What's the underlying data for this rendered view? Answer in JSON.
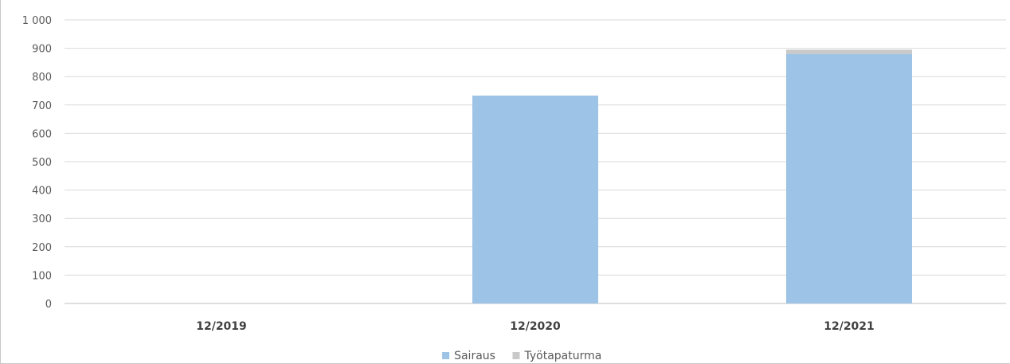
{
  "chart_data": {
    "type": "bar",
    "stacked": true,
    "categories": [
      "12/2019",
      "12/2020",
      "12/2021"
    ],
    "series": [
      {
        "name": "Sairaus",
        "values": [
          0,
          733,
          880
        ],
        "color": "#9dc3e6"
      },
      {
        "name": "Työtapaturma",
        "values": [
          0,
          0,
          15
        ],
        "color": "#c9c9c9"
      }
    ],
    "title": "",
    "xlabel": "",
    "ylabel": "",
    "ylim": [
      0,
      1000
    ],
    "yticks": [
      "0",
      "100",
      "200",
      "300",
      "400",
      "500",
      "600",
      "700",
      "800",
      "900",
      "1 000"
    ],
    "grid": true,
    "legend_position": "bottom",
    "grid_color": "#d9d9d9"
  }
}
